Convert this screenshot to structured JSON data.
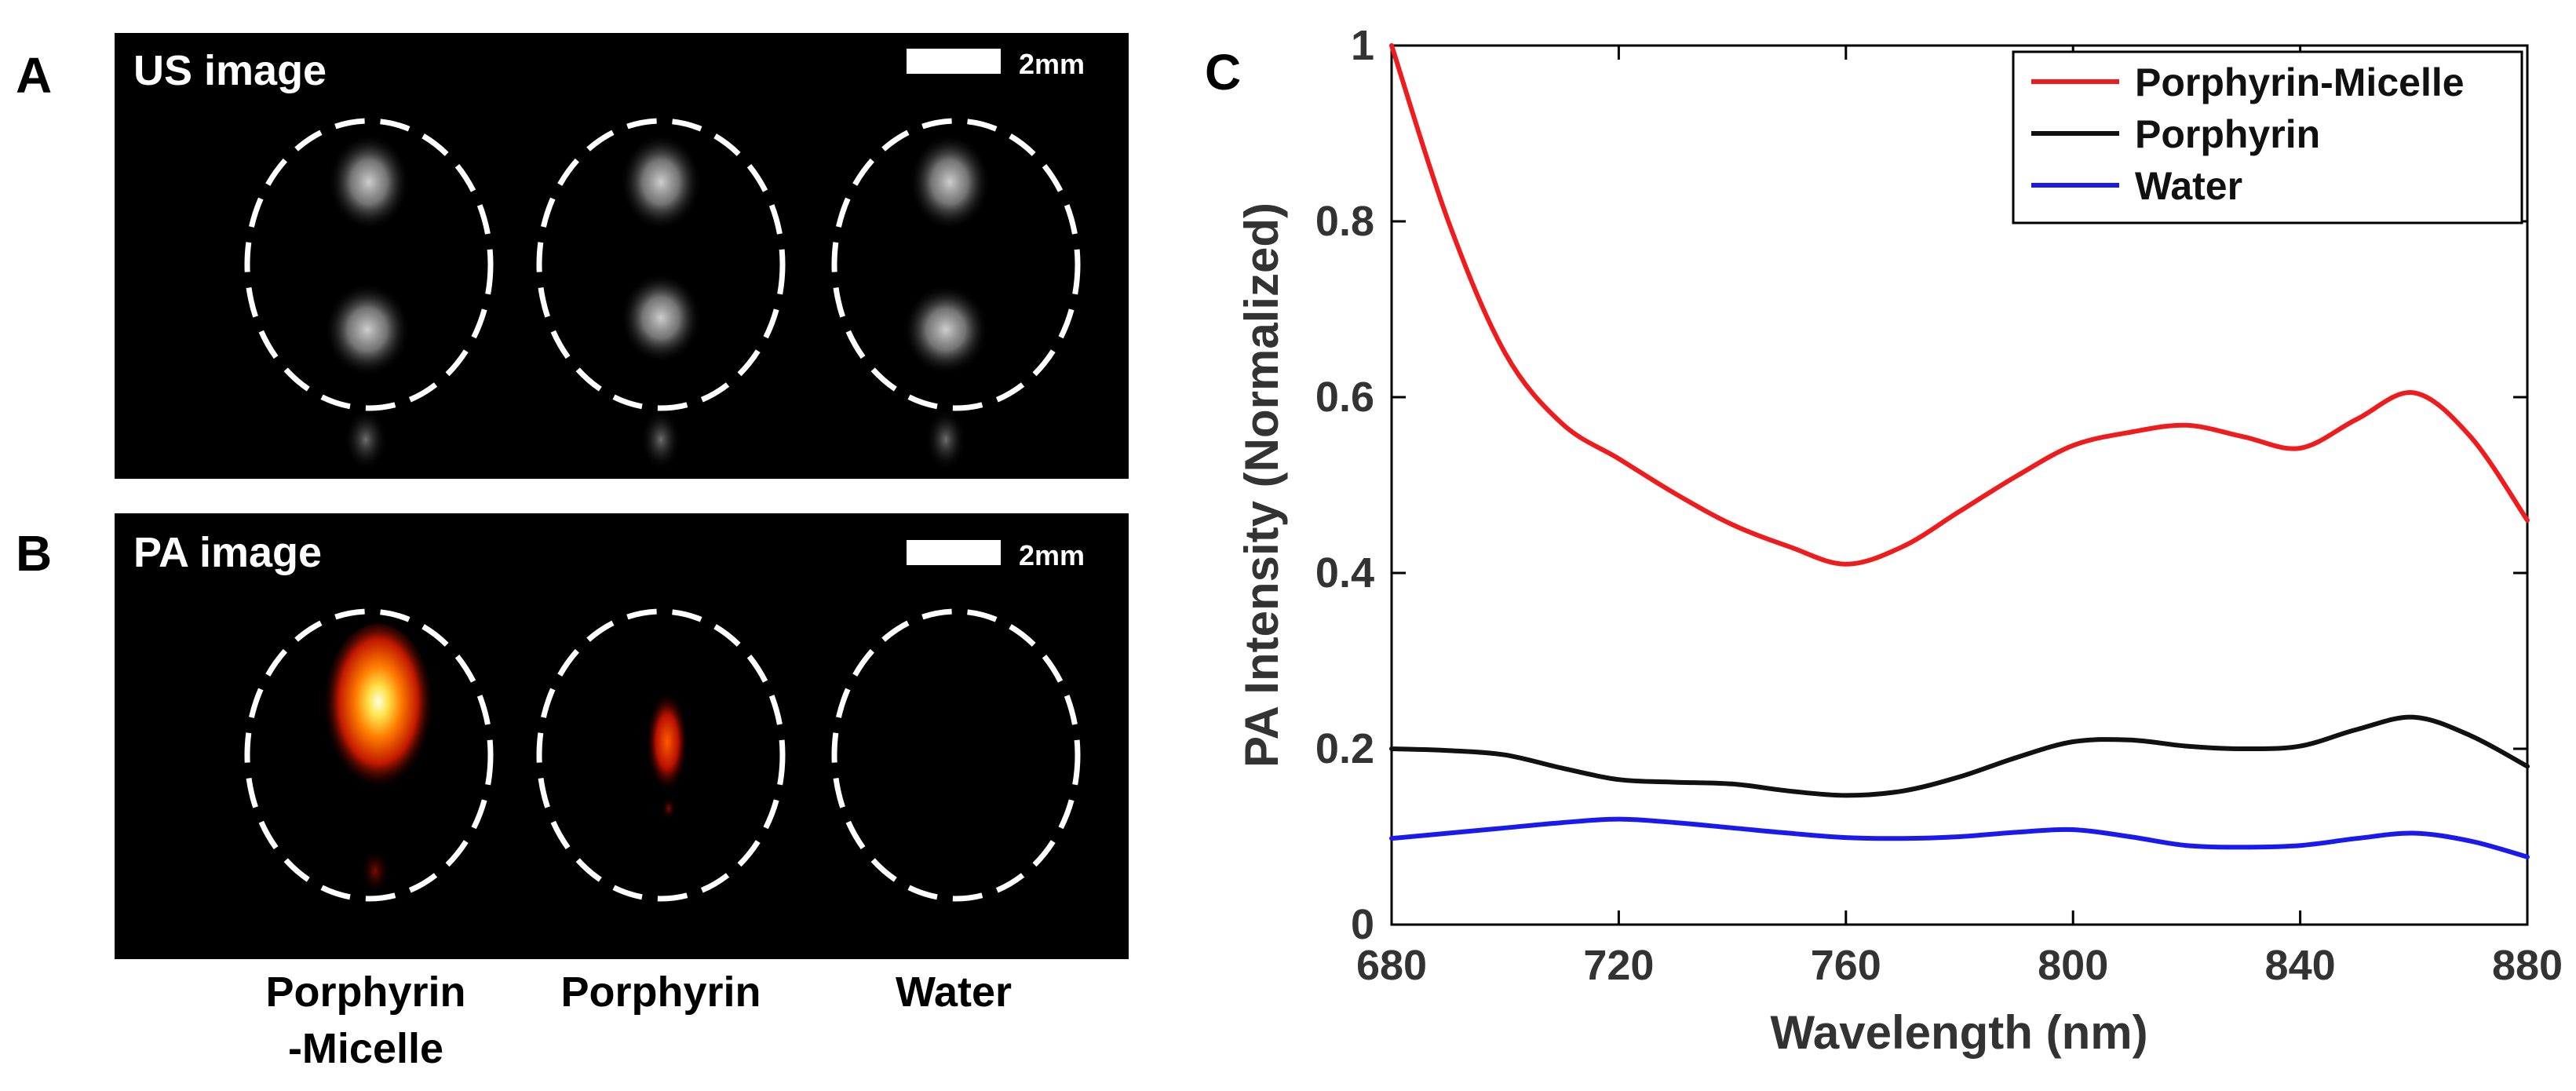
{
  "panels": {
    "a": {
      "letter": "A",
      "title": "US image",
      "scale_bar_label": "2mm"
    },
    "b": {
      "letter": "B",
      "title": "PA image",
      "scale_bar_label": "2mm"
    },
    "c": {
      "letter": "C"
    }
  },
  "sample_labels": [
    {
      "line1": "Porphyrin",
      "line2": "-Micelle"
    },
    {
      "line1": "Porphyrin",
      "line2": ""
    },
    {
      "line1": "Water",
      "line2": ""
    }
  ],
  "colors": {
    "porphyrin_micelle": "#ee1c1c",
    "porphyrin": "#111111",
    "water": "#1a1aee"
  },
  "chart_data": {
    "type": "line",
    "title": "",
    "xlabel": "Wavelength (nm)",
    "ylabel": "PA Intensity (Normalized)",
    "xlim": [
      680,
      880
    ],
    "ylim": [
      0,
      1
    ],
    "x_ticks": [
      680,
      720,
      760,
      800,
      840,
      880
    ],
    "x_tick_labels": [
      "680",
      "720",
      "760",
      "800",
      "840",
      "880"
    ],
    "y_ticks": [
      0,
      0.2,
      0.4,
      0.6,
      0.8,
      1
    ],
    "y_tick_labels": [
      "0",
      "0.2",
      "0.4",
      "0.6",
      "0.8",
      "1"
    ],
    "grid": false,
    "legend_position": "top-right",
    "x": [
      680,
      690,
      700,
      710,
      720,
      730,
      740,
      750,
      760,
      770,
      780,
      790,
      800,
      810,
      820,
      830,
      840,
      850,
      860,
      870,
      880
    ],
    "series": [
      {
        "name": "Porphyrin-Micelle",
        "color": "#ee1c1c",
        "values": [
          1.0,
          0.8,
          0.65,
          0.57,
          0.53,
          0.49,
          0.455,
          0.43,
          0.41,
          0.43,
          0.47,
          0.51,
          0.545,
          0.56,
          0.568,
          0.555,
          0.542,
          0.575,
          0.605,
          0.555,
          0.46
        ]
      },
      {
        "name": "Porphyrin",
        "color": "#111111",
        "values": [
          0.2,
          0.198,
          0.193,
          0.178,
          0.165,
          0.162,
          0.16,
          0.152,
          0.147,
          0.152,
          0.168,
          0.19,
          0.208,
          0.21,
          0.203,
          0.2,
          0.203,
          0.222,
          0.236,
          0.215,
          0.18
        ]
      },
      {
        "name": "Water",
        "color": "#1a1aee",
        "values": [
          0.098,
          0.104,
          0.11,
          0.116,
          0.12,
          0.116,
          0.11,
          0.104,
          0.099,
          0.098,
          0.1,
          0.105,
          0.108,
          0.1,
          0.09,
          0.088,
          0.09,
          0.098,
          0.104,
          0.095,
          0.077
        ]
      }
    ]
  }
}
